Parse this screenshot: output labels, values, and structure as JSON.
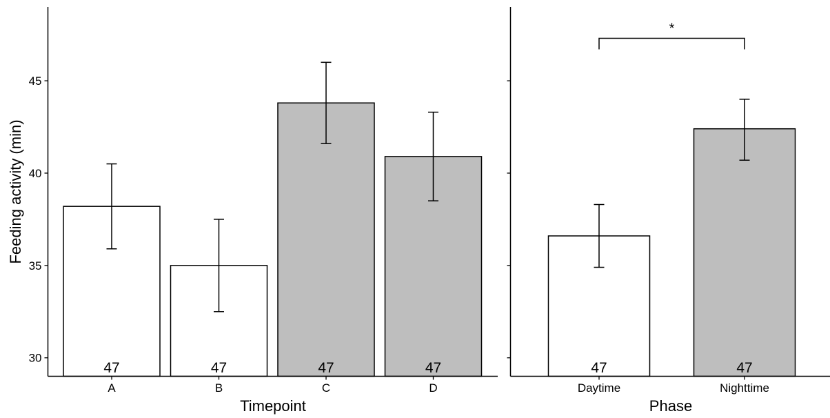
{
  "chart_data": [
    {
      "type": "bar",
      "xlabel": "Timepoint",
      "ylabel": "Feeding activity (min)",
      "ylim": [
        29.0,
        49.0
      ],
      "yticks": [
        30,
        35,
        40,
        45
      ],
      "grid": false,
      "categories": [
        "A",
        "B",
        "C",
        "D"
      ],
      "values": [
        38.2,
        35.0,
        43.8,
        40.9
      ],
      "error_low": [
        35.9,
        32.5,
        41.6,
        38.5
      ],
      "error_high": [
        40.5,
        37.5,
        46.0,
        43.3
      ],
      "n_labels": [
        "47",
        "47",
        "47",
        "47"
      ],
      "fill_colors": [
        "#ffffff",
        "#ffffff",
        "#bebebe",
        "#bebebe"
      ]
    },
    {
      "type": "bar",
      "xlabel": "Phase",
      "ylim": [
        29.0,
        49.0
      ],
      "yticks": [
        30,
        35,
        40,
        45
      ],
      "grid": false,
      "categories": [
        "Daytime",
        "Nighttime"
      ],
      "values": [
        36.6,
        42.4
      ],
      "error_low": [
        34.9,
        40.7
      ],
      "error_high": [
        38.3,
        44.0
      ],
      "n_labels": [
        "47",
        "47"
      ],
      "fill_colors": [
        "#ffffff",
        "#bebebe"
      ],
      "significance": {
        "label": "*",
        "pair": [
          "Daytime",
          "Nighttime"
        ],
        "y": 47.3
      }
    }
  ]
}
